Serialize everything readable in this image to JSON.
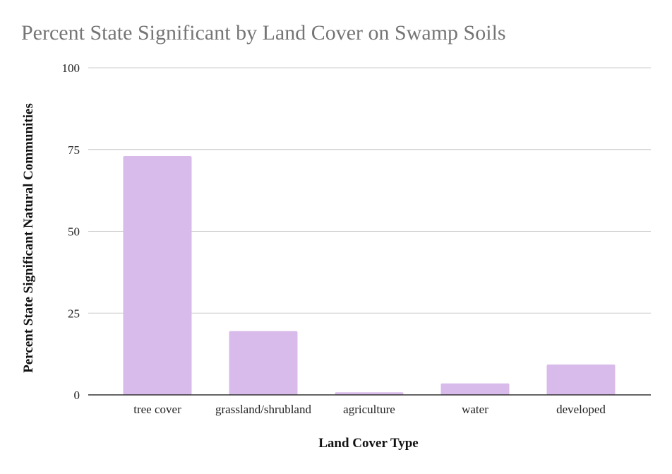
{
  "chart_data": {
    "type": "bar",
    "title": "Percent State Significant by Land Cover on Swamp Soils",
    "xlabel": "Land Cover Type",
    "ylabel": "Percent State Significant Natural Communities",
    "categories": [
      "tree cover",
      "grassland/shrubland",
      "agriculture",
      "water",
      "developed"
    ],
    "values": [
      73,
      19.5,
      0.8,
      3.5,
      9.3
    ],
    "ylim": [
      0,
      100
    ],
    "yticks": [
      "0",
      "25",
      "50",
      "75",
      "100"
    ],
    "grid": true,
    "legend": "none",
    "colors": {
      "bar": "#d8bbea"
    }
  }
}
